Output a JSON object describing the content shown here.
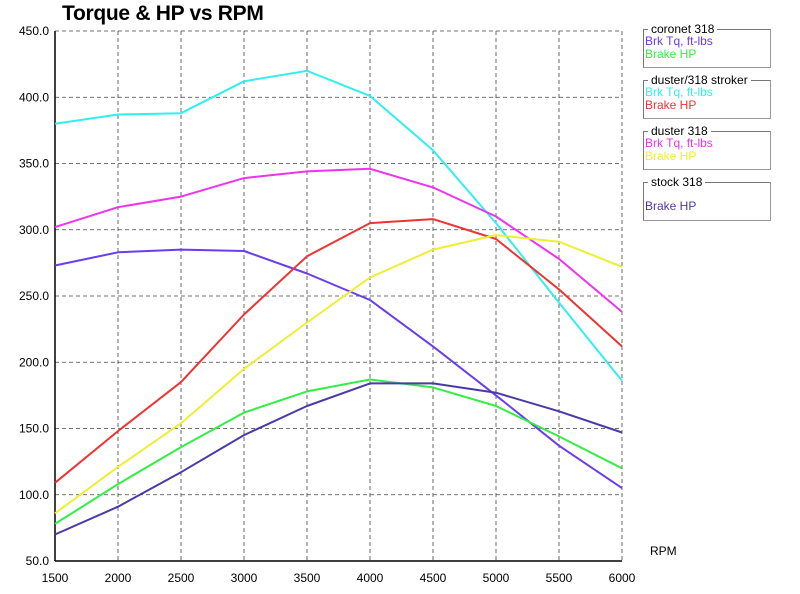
{
  "chart_data": {
    "type": "line",
    "title": "Torque & HP vs RPM",
    "xlabel": "RPM",
    "ylabel": "",
    "x": [
      1500,
      2000,
      2500,
      3000,
      3500,
      4000,
      4500,
      5000,
      5500,
      6000
    ],
    "xlim": [
      1500,
      6000
    ],
    "ylim": [
      50,
      450
    ],
    "yticks": [
      "50.0",
      "100.0",
      "150.0",
      "200.0",
      "250.0",
      "300.0",
      "350.0",
      "400.0",
      "450.0"
    ],
    "xticks": [
      "1500",
      "2000",
      "2500",
      "3000",
      "3500",
      "4000",
      "4500",
      "5000",
      "5500",
      "6000"
    ],
    "grid": true,
    "legend_position": "right",
    "groups": [
      {
        "name": "coronet 318",
        "series": [
          {
            "name": "Brk Tq, ft-lbs",
            "color": "#6a3cf0",
            "values": [
              273,
              283,
              285,
              284,
              267,
              247,
              212,
              175,
              137,
              105
            ]
          },
          {
            "name": "Brake HP",
            "color": "#33ee44",
            "values": [
              78,
              108,
              136,
              162,
              178,
              187,
              181,
              167,
              144,
              120
            ]
          }
        ]
      },
      {
        "name": "duster/318 stroker",
        "series": [
          {
            "name": "Brk Tq, ft-lbs",
            "color": "#33eeee",
            "values": [
              380,
              387,
              388,
              412,
              420,
              401,
              360,
              305,
              245,
              186
            ]
          },
          {
            "name": "Brake HP",
            "color": "#ee3333",
            "values": [
              109,
              148,
              185,
              236,
              280,
              305,
              308,
              293,
              255,
              212
            ]
          }
        ]
      },
      {
        "name": "duster 318",
        "series": [
          {
            "name": "Brk Tq, ft-lbs",
            "color": "#ee33ee",
            "values": [
              302,
              317,
              325,
              339,
              344,
              346,
              332,
              310,
              278,
              238
            ]
          },
          {
            "name": "Brake HP",
            "color": "#eeee33",
            "values": [
              86,
              121,
              154,
              195,
              230,
              264,
              285,
              296,
              291,
              272
            ]
          }
        ]
      },
      {
        "name": "stock 318",
        "series": [
          {
            "name": "Brake HP",
            "color": "#4a3aa8",
            "values": [
              70,
              91,
              117,
              145,
              167,
              184,
              184,
              177,
              163,
              147
            ]
          }
        ]
      }
    ]
  }
}
